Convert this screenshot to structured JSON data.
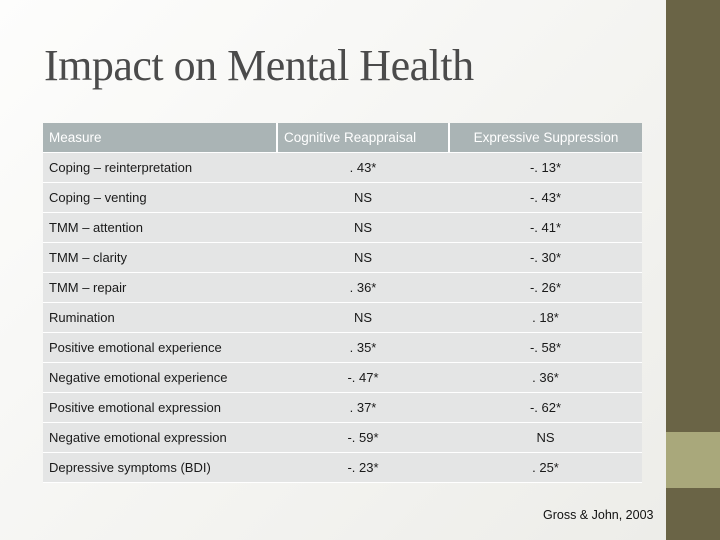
{
  "title": "Impact on Mental Health",
  "table": {
    "headers": [
      "Measure",
      "Cognitive Reappraisal",
      "Expressive Suppression"
    ],
    "rows": [
      [
        "Coping – reinterpretation",
        ". 43*",
        "-. 13*"
      ],
      [
        "Coping – venting",
        "NS",
        "-. 43*"
      ],
      [
        "TMM – attention",
        "NS",
        "-. 41*"
      ],
      [
        "TMM – clarity",
        "NS",
        "-. 30*"
      ],
      [
        "TMM – repair",
        ". 36*",
        "-. 26*"
      ],
      [
        "Rumination",
        "NS",
        ". 18*"
      ],
      [
        "Positive emotional experience",
        ". 35*",
        "-. 58*"
      ],
      [
        "Negative emotional experience",
        "-. 47*",
        ". 36*"
      ],
      [
        "Positive emotional expression",
        ". 37*",
        "-. 62*"
      ],
      [
        "Negative emotional expression",
        "-. 59*",
        "NS"
      ],
      [
        "Depressive symptoms (BDI)",
        "-. 23*",
        ". 25*"
      ]
    ]
  },
  "citation": "Gross & John, 2003",
  "colors": {
    "header_bg": "#aab4b5",
    "row_bg": "#e4e5e5",
    "side_bar": "#6a6446",
    "side_accent": "#a9a87b"
  }
}
